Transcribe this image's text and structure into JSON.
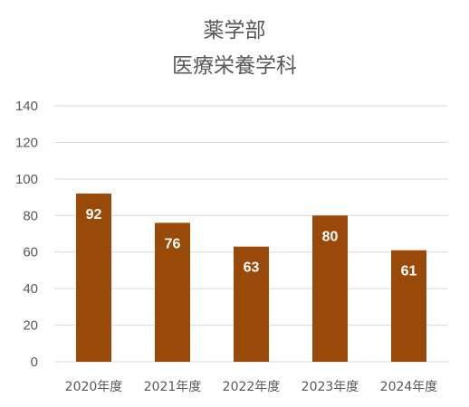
{
  "chart_data": {
    "type": "bar",
    "title_lines": [
      "薬学部",
      "医療栄養学科"
    ],
    "categories": [
      "2020年度",
      "2021年度",
      "2022年度",
      "2023年度",
      "2024年度"
    ],
    "values": [
      92,
      76,
      63,
      80,
      61
    ],
    "ylim": [
      0,
      140
    ],
    "yticks": [
      0,
      20,
      40,
      60,
      80,
      100,
      120,
      140
    ],
    "grid": true,
    "bar_color": "#9a4a08",
    "data_labels": true
  }
}
